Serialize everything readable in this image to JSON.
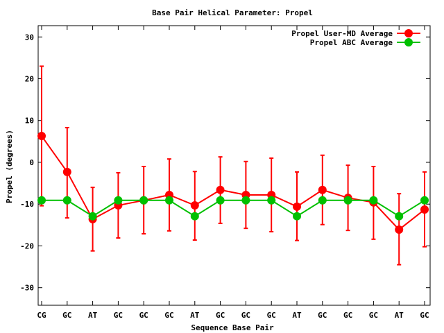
{
  "chart_data": {
    "type": "line",
    "title": "Base Pair Helical Parameter: Propel",
    "xlabel": "Sequence Base Pair",
    "ylabel": "Propel (degrees)",
    "ylim": [
      -34.2,
      32.7
    ],
    "yticks": [
      30,
      20,
      10,
      0,
      -10,
      -20,
      -30
    ],
    "ytick_labels": [
      "30",
      "20",
      "10",
      "0",
      "-10",
      "-20",
      "-30"
    ],
    "categories": [
      "CG",
      "GC",
      "AT",
      "GC",
      "GC",
      "GC",
      "AT",
      "GC",
      "GC",
      "GC",
      "AT",
      "GC",
      "GC",
      "GC",
      "AT",
      "GC"
    ],
    "legend_position": "top-right",
    "grid": false,
    "series": [
      {
        "name": "Propel User-MD Average",
        "color": "#ff0000",
        "values": [
          6.3,
          -2.3,
          -13.6,
          -10.3,
          -9.1,
          -7.8,
          -10.3,
          -6.6,
          -7.8,
          -7.8,
          -10.6,
          -6.6,
          -8.5,
          -9.6,
          -16.1,
          -11.3
        ],
        "err_high": [
          23.0,
          8.3,
          -6.0,
          -2.5,
          -1.0,
          0.8,
          -2.2,
          1.3,
          0.2,
          1.0,
          -2.3,
          1.7,
          -0.7,
          -1.0,
          -7.5,
          -2.3
        ],
        "err_low": [
          -10.4,
          -13.3,
          -21.2,
          -18.1,
          -17.1,
          -16.4,
          -18.6,
          -14.6,
          -15.8,
          -16.6,
          -18.7,
          -14.9,
          -16.3,
          -18.4,
          -24.5,
          -20.2
        ]
      },
      {
        "name": "Propel ABC Average",
        "color": "#00c000",
        "values": [
          -9.1,
          -9.1,
          -12.9,
          -9.1,
          -9.1,
          -9.1,
          -12.9,
          -9.1,
          -9.1,
          -9.1,
          -12.9,
          -9.1,
          -9.1,
          -9.1,
          -12.9,
          -9.1
        ]
      }
    ]
  }
}
